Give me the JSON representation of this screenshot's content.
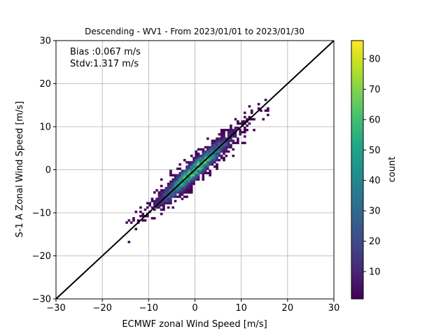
{
  "chart_data": {
    "type": "heatmap",
    "title": "Descending - WV1 - From 2023/01/01 to 2023/01/30",
    "xlabel": "ECMWF zonal Wind Speed [m/s]",
    "ylabel": "S-1 A Zonal Wind Speed [m/s]",
    "xlim": [
      -30,
      30
    ],
    "ylim": [
      -30,
      30
    ],
    "x_ticks": [
      "−30",
      "−20",
      "−10",
      "0",
      "10",
      "20",
      "30"
    ],
    "y_ticks": [
      "−30",
      "−20",
      "−10",
      "0",
      "10",
      "20",
      "30"
    ],
    "x_tick_values": [
      -30,
      -20,
      -10,
      0,
      10,
      20,
      30
    ],
    "y_tick_values": [
      -30,
      -20,
      -10,
      0,
      10,
      20,
      30
    ],
    "grid": true,
    "annotations": [
      "Bias :0.067 m/s",
      "Stdv:1.317 m/s"
    ],
    "reference_line": {
      "slope": 1,
      "intercept": 0,
      "color": "#000000"
    },
    "density_model": {
      "slope": 1.0,
      "center": [
        0,
        0
      ],
      "spread_along": 8.5,
      "spread_across": 1.3,
      "max_count": 86
    },
    "colorbar": {
      "label": "count",
      "colormap": "viridis",
      "range": [
        1,
        86
      ],
      "ticks": [
        "10",
        "20",
        "30",
        "40",
        "50",
        "60",
        "70",
        "80"
      ],
      "tick_values": [
        10,
        20,
        30,
        40,
        50,
        60,
        70,
        80
      ]
    }
  }
}
